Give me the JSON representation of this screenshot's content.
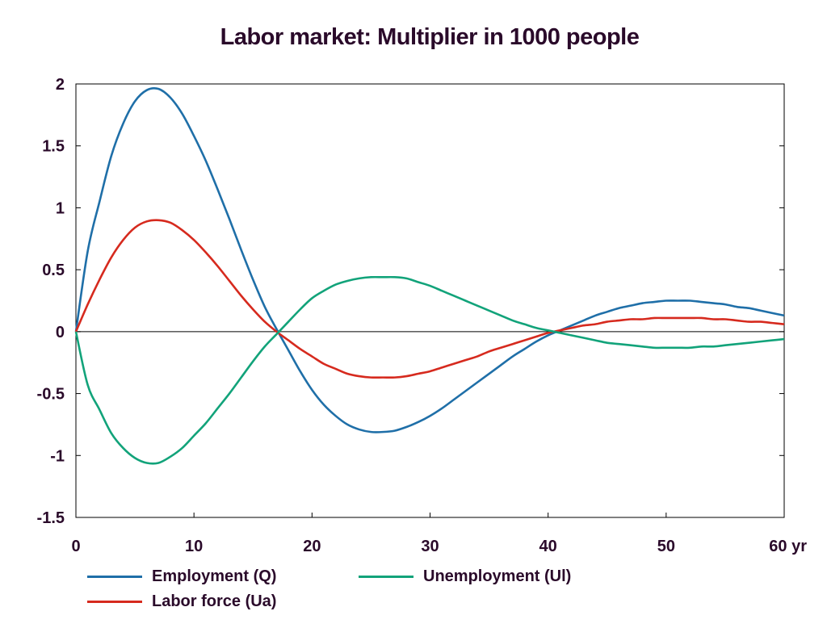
{
  "chart_data": {
    "type": "line",
    "title": "Labor market: Multiplier in 1000 people",
    "xlabel": "",
    "ylabel": "",
    "x_unit_label": "yr",
    "xlim": [
      0,
      60
    ],
    "ylim": [
      -1.5,
      2
    ],
    "x_ticks": [
      0,
      10,
      20,
      30,
      40,
      50,
      60
    ],
    "y_ticks": [
      -1.5,
      -1,
      -0.5,
      0,
      0.5,
      1,
      1.5,
      2
    ],
    "x_tick_labels": [
      "0",
      "10",
      "20",
      "30",
      "40",
      "50",
      "60 yr"
    ],
    "y_tick_labels": [
      "-1.5",
      "-1",
      "-0.5",
      "0",
      "0.5",
      "1",
      "1.5",
      "2"
    ],
    "grid": false,
    "legend_position": "bottom",
    "x": [
      0,
      1,
      2,
      3,
      4,
      5,
      6,
      7,
      8,
      9,
      10,
      11,
      12,
      13,
      14,
      15,
      16,
      17,
      18,
      19,
      20,
      21,
      22,
      23,
      24,
      25,
      26,
      27,
      28,
      29,
      30,
      31,
      32,
      33,
      34,
      35,
      36,
      37,
      38,
      39,
      40,
      41,
      42,
      43,
      44,
      45,
      46,
      47,
      48,
      49,
      50,
      51,
      52,
      53,
      54,
      55,
      56,
      57,
      58,
      59,
      60
    ],
    "series": [
      {
        "name": "Employment (Q)",
        "color": "#1f6fa8",
        "values": [
          0,
          0.65,
          1.05,
          1.42,
          1.68,
          1.86,
          1.95,
          1.96,
          1.89,
          1.76,
          1.58,
          1.38,
          1.15,
          0.91,
          0.66,
          0.42,
          0.2,
          0.02,
          -0.15,
          -0.32,
          -0.47,
          -0.59,
          -0.68,
          -0.75,
          -0.79,
          -0.81,
          -0.81,
          -0.8,
          -0.77,
          -0.73,
          -0.68,
          -0.62,
          -0.55,
          -0.48,
          -0.41,
          -0.34,
          -0.27,
          -0.2,
          -0.14,
          -0.08,
          -0.03,
          0.01,
          0.05,
          0.09,
          0.13,
          0.16,
          0.19,
          0.21,
          0.23,
          0.24,
          0.25,
          0.25,
          0.25,
          0.24,
          0.23,
          0.22,
          0.2,
          0.19,
          0.17,
          0.15,
          0.13
        ]
      },
      {
        "name": "Labor force (Ua)",
        "color": "#d62a1e",
        "values": [
          0,
          0.22,
          0.42,
          0.6,
          0.74,
          0.84,
          0.89,
          0.9,
          0.88,
          0.82,
          0.74,
          0.64,
          0.53,
          0.41,
          0.29,
          0.18,
          0.08,
          0.0,
          -0.07,
          -0.14,
          -0.2,
          -0.26,
          -0.3,
          -0.34,
          -0.36,
          -0.37,
          -0.37,
          -0.37,
          -0.36,
          -0.34,
          -0.32,
          -0.29,
          -0.26,
          -0.23,
          -0.2,
          -0.16,
          -0.13,
          -0.1,
          -0.07,
          -0.04,
          -0.01,
          0.01,
          0.03,
          0.05,
          0.06,
          0.08,
          0.09,
          0.1,
          0.1,
          0.11,
          0.11,
          0.11,
          0.11,
          0.11,
          0.1,
          0.1,
          0.09,
          0.08,
          0.08,
          0.07,
          0.06
        ]
      },
      {
        "name": "Unemployment (Ul)",
        "color": "#12a37a",
        "values": [
          0,
          -0.43,
          -0.63,
          -0.82,
          -0.94,
          -1.02,
          -1.06,
          -1.06,
          -1.01,
          -0.94,
          -0.84,
          -0.74,
          -0.62,
          -0.5,
          -0.37,
          -0.24,
          -0.12,
          -0.02,
          0.08,
          0.18,
          0.27,
          0.33,
          0.38,
          0.41,
          0.43,
          0.44,
          0.44,
          0.44,
          0.43,
          0.4,
          0.37,
          0.33,
          0.29,
          0.25,
          0.21,
          0.17,
          0.13,
          0.09,
          0.06,
          0.03,
          0.01,
          -0.01,
          -0.03,
          -0.05,
          -0.07,
          -0.09,
          -0.1,
          -0.11,
          -0.12,
          -0.13,
          -0.13,
          -0.13,
          -0.13,
          -0.12,
          -0.12,
          -0.11,
          -0.1,
          -0.09,
          -0.08,
          -0.07,
          -0.06
        ]
      }
    ]
  }
}
